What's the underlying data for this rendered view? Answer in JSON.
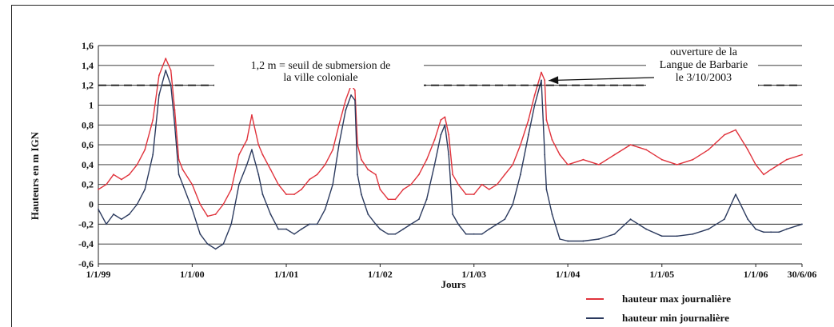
{
  "chart_data": {
    "type": "line",
    "title": "",
    "xlabel": "Jours",
    "ylabel": "Hauteurs en m IGN",
    "ylim": [
      -0.6,
      1.6
    ],
    "xlim": [
      "1999-01-01",
      "2006-06-30"
    ],
    "grid": true,
    "y_ticks": [
      "1,6",
      "1,4",
      "1,2",
      "1",
      "0,8",
      "0,6",
      "0,4",
      "0,2",
      "0",
      "-0,2",
      "-0,4",
      "-0,6"
    ],
    "y_tick_values": [
      1.6,
      1.4,
      1.2,
      1.0,
      0.8,
      0.6,
      0.4,
      0.2,
      0,
      -0.2,
      -0.4,
      -0.6
    ],
    "x_ticks": [
      {
        "label": "1/1/99",
        "date": "1999-01-01"
      },
      {
        "label": "1/1/00",
        "date": "2000-01-01"
      },
      {
        "label": "1/1/01",
        "date": "2001-01-01"
      },
      {
        "label": "1/1/02",
        "date": "2002-01-01"
      },
      {
        "label": "1/1/03",
        "date": "2003-01-01"
      },
      {
        "label": "1/1/04",
        "date": "2004-01-01"
      },
      {
        "label": "1/1/05",
        "date": "2005-01-01"
      },
      {
        "label": "1/1/06",
        "date": "2006-01-01"
      },
      {
        "label": "30/6/06",
        "date": "2006-06-30"
      }
    ],
    "threshold": {
      "value": 1.2,
      "style": "dashed"
    },
    "annotations": {
      "threshold_label": [
        "1,2 m = seuil de submersion de",
        "la ville coloniale"
      ],
      "opening_label": [
        "ouverture de la",
        "Langue de Barbarie",
        "le 3/10/2003"
      ],
      "opening_arrow_target": {
        "x": "2003-10-03",
        "y": 1.2
      }
    },
    "legend_position": "bottom-right",
    "series": [
      {
        "name": "hauteur max journalière",
        "color": "#e0333c",
        "points": [
          [
            "1999-01-01",
            0.15
          ],
          [
            "1999-02-01",
            0.2
          ],
          [
            "1999-03-01",
            0.3
          ],
          [
            "1999-04-01",
            0.25
          ],
          [
            "1999-05-01",
            0.3
          ],
          [
            "1999-06-01",
            0.4
          ],
          [
            "1999-07-01",
            0.55
          ],
          [
            "1999-08-01",
            0.85
          ],
          [
            "1999-08-25",
            1.3
          ],
          [
            "1999-09-20",
            1.47
          ],
          [
            "1999-10-10",
            1.35
          ],
          [
            "1999-10-25",
            0.95
          ],
          [
            "1999-11-10",
            0.45
          ],
          [
            "1999-11-25",
            0.35
          ],
          [
            "2000-01-01",
            0.2
          ],
          [
            "2000-02-01",
            0.0
          ],
          [
            "2000-03-01",
            -0.12
          ],
          [
            "2000-04-01",
            -0.1
          ],
          [
            "2000-05-01",
            0.0
          ],
          [
            "2000-06-01",
            0.15
          ],
          [
            "2000-07-01",
            0.5
          ],
          [
            "2000-08-01",
            0.65
          ],
          [
            "2000-08-20",
            0.9
          ],
          [
            "2000-09-15",
            0.6
          ],
          [
            "2000-10-01",
            0.5
          ],
          [
            "2000-11-01",
            0.35
          ],
          [
            "2000-12-01",
            0.2
          ],
          [
            "2001-01-01",
            0.1
          ],
          [
            "2001-02-01",
            0.1
          ],
          [
            "2001-03-01",
            0.15
          ],
          [
            "2001-04-01",
            0.25
          ],
          [
            "2001-05-01",
            0.3
          ],
          [
            "2001-06-01",
            0.4
          ],
          [
            "2001-07-01",
            0.55
          ],
          [
            "2001-07-25",
            0.8
          ],
          [
            "2001-08-20",
            1.05
          ],
          [
            "2001-09-10",
            1.2
          ],
          [
            "2001-09-25",
            1.15
          ],
          [
            "2001-10-05",
            0.6
          ],
          [
            "2001-10-20",
            0.45
          ],
          [
            "2001-11-15",
            0.35
          ],
          [
            "2001-12-15",
            0.3
          ],
          [
            "2002-01-01",
            0.15
          ],
          [
            "2002-02-01",
            0.05
          ],
          [
            "2002-03-01",
            0.05
          ],
          [
            "2002-04-01",
            0.15
          ],
          [
            "2002-05-01",
            0.2
          ],
          [
            "2002-06-01",
            0.3
          ],
          [
            "2002-07-01",
            0.45
          ],
          [
            "2002-08-01",
            0.65
          ],
          [
            "2002-08-25",
            0.85
          ],
          [
            "2002-09-10",
            0.88
          ],
          [
            "2002-09-25",
            0.7
          ],
          [
            "2002-10-10",
            0.3
          ],
          [
            "2002-11-01",
            0.2
          ],
          [
            "2002-12-01",
            0.1
          ],
          [
            "2003-01-01",
            0.1
          ],
          [
            "2003-02-01",
            0.2
          ],
          [
            "2003-03-01",
            0.15
          ],
          [
            "2003-04-01",
            0.2
          ],
          [
            "2003-05-01",
            0.3
          ],
          [
            "2003-06-01",
            0.4
          ],
          [
            "2003-07-01",
            0.6
          ],
          [
            "2003-08-01",
            0.85
          ],
          [
            "2003-08-25",
            1.1
          ],
          [
            "2003-09-20",
            1.33
          ],
          [
            "2003-10-03",
            1.25
          ],
          [
            "2003-10-10",
            0.85
          ],
          [
            "2003-11-01",
            0.65
          ],
          [
            "2003-12-01",
            0.5
          ],
          [
            "2004-01-01",
            0.4
          ],
          [
            "2004-03-01",
            0.45
          ],
          [
            "2004-05-01",
            0.4
          ],
          [
            "2004-07-01",
            0.5
          ],
          [
            "2004-09-01",
            0.6
          ],
          [
            "2004-11-01",
            0.55
          ],
          [
            "2005-01-01",
            0.45
          ],
          [
            "2005-03-01",
            0.4
          ],
          [
            "2005-05-01",
            0.45
          ],
          [
            "2005-07-01",
            0.55
          ],
          [
            "2005-09-01",
            0.7
          ],
          [
            "2005-10-15",
            0.75
          ],
          [
            "2005-12-01",
            0.55
          ],
          [
            "2006-01-01",
            0.4
          ],
          [
            "2006-02-01",
            0.3
          ],
          [
            "2006-03-01",
            0.35
          ],
          [
            "2006-04-01",
            0.4
          ],
          [
            "2006-05-01",
            0.45
          ],
          [
            "2006-06-30",
            0.5
          ]
        ]
      },
      {
        "name": "hauteur min journalière",
        "color": "#2b3a5e",
        "points": [
          [
            "1999-01-01",
            -0.05
          ],
          [
            "1999-02-01",
            -0.2
          ],
          [
            "1999-03-01",
            -0.1
          ],
          [
            "1999-04-01",
            -0.15
          ],
          [
            "1999-05-01",
            -0.1
          ],
          [
            "1999-06-01",
            0.0
          ],
          [
            "1999-07-01",
            0.15
          ],
          [
            "1999-08-01",
            0.5
          ],
          [
            "1999-08-25",
            1.1
          ],
          [
            "1999-09-20",
            1.35
          ],
          [
            "1999-10-10",
            1.2
          ],
          [
            "1999-10-25",
            0.8
          ],
          [
            "1999-11-10",
            0.3
          ],
          [
            "1999-11-25",
            0.2
          ],
          [
            "2000-01-01",
            -0.05
          ],
          [
            "2000-02-01",
            -0.3
          ],
          [
            "2000-03-01",
            -0.4
          ],
          [
            "2000-04-01",
            -0.45
          ],
          [
            "2000-05-01",
            -0.4
          ],
          [
            "2000-06-01",
            -0.2
          ],
          [
            "2000-07-01",
            0.2
          ],
          [
            "2000-08-01",
            0.4
          ],
          [
            "2000-08-20",
            0.55
          ],
          [
            "2000-09-15",
            0.3
          ],
          [
            "2000-10-01",
            0.1
          ],
          [
            "2000-11-01",
            -0.1
          ],
          [
            "2000-12-01",
            -0.25
          ],
          [
            "2001-01-01",
            -0.25
          ],
          [
            "2001-02-01",
            -0.3
          ],
          [
            "2001-03-01",
            -0.25
          ],
          [
            "2001-04-01",
            -0.2
          ],
          [
            "2001-05-01",
            -0.2
          ],
          [
            "2001-06-01",
            -0.05
          ],
          [
            "2001-07-01",
            0.2
          ],
          [
            "2001-07-25",
            0.6
          ],
          [
            "2001-08-20",
            0.95
          ],
          [
            "2001-09-10",
            1.1
          ],
          [
            "2001-09-25",
            1.05
          ],
          [
            "2001-10-05",
            0.3
          ],
          [
            "2001-10-20",
            0.1
          ],
          [
            "2001-11-15",
            -0.1
          ],
          [
            "2001-12-15",
            -0.2
          ],
          [
            "2002-01-01",
            -0.25
          ],
          [
            "2002-02-01",
            -0.3
          ],
          [
            "2002-03-01",
            -0.3
          ],
          [
            "2002-04-01",
            -0.25
          ],
          [
            "2002-05-01",
            -0.2
          ],
          [
            "2002-06-01",
            -0.15
          ],
          [
            "2002-07-01",
            0.05
          ],
          [
            "2002-08-01",
            0.4
          ],
          [
            "2002-08-25",
            0.7
          ],
          [
            "2002-09-10",
            0.8
          ],
          [
            "2002-09-25",
            0.5
          ],
          [
            "2002-10-10",
            -0.1
          ],
          [
            "2002-11-01",
            -0.2
          ],
          [
            "2002-12-01",
            -0.3
          ],
          [
            "2003-01-01",
            -0.3
          ],
          [
            "2003-02-01",
            -0.3
          ],
          [
            "2003-03-01",
            -0.25
          ],
          [
            "2003-04-01",
            -0.2
          ],
          [
            "2003-05-01",
            -0.15
          ],
          [
            "2003-06-01",
            0.0
          ],
          [
            "2003-07-01",
            0.3
          ],
          [
            "2003-08-01",
            0.7
          ],
          [
            "2003-08-25",
            1.0
          ],
          [
            "2003-09-20",
            1.25
          ],
          [
            "2003-10-03",
            0.5
          ],
          [
            "2003-10-10",
            0.15
          ],
          [
            "2003-11-01",
            -0.1
          ],
          [
            "2003-12-01",
            -0.35
          ],
          [
            "2004-01-01",
            -0.37
          ],
          [
            "2004-03-01",
            -0.37
          ],
          [
            "2004-05-01",
            -0.35
          ],
          [
            "2004-07-01",
            -0.3
          ],
          [
            "2004-09-01",
            -0.15
          ],
          [
            "2004-11-01",
            -0.25
          ],
          [
            "2005-01-01",
            -0.32
          ],
          [
            "2005-03-01",
            -0.32
          ],
          [
            "2005-05-01",
            -0.3
          ],
          [
            "2005-07-01",
            -0.25
          ],
          [
            "2005-09-01",
            -0.15
          ],
          [
            "2005-10-15",
            0.1
          ],
          [
            "2005-12-01",
            -0.15
          ],
          [
            "2006-01-01",
            -0.25
          ],
          [
            "2006-02-01",
            -0.28
          ],
          [
            "2006-03-01",
            -0.28
          ],
          [
            "2006-04-01",
            -0.28
          ],
          [
            "2006-05-01",
            -0.25
          ],
          [
            "2006-06-30",
            -0.2
          ]
        ]
      }
    ]
  }
}
